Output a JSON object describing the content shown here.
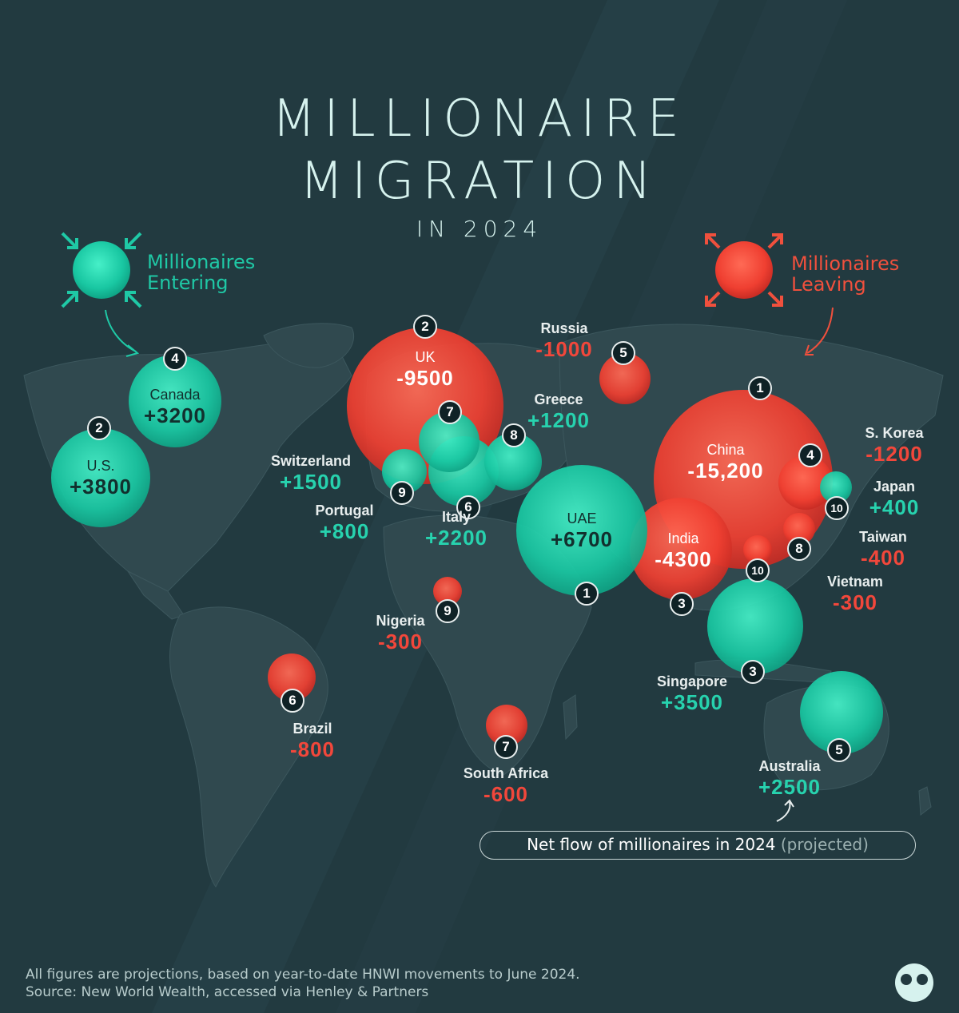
{
  "title": {
    "line1": "MILLIONAIRE",
    "line2": "MIGRATION",
    "line3": "IN 2024"
  },
  "legend": {
    "entering": {
      "label": "Millionaires\nEntering",
      "color": "#1fc9a6"
    },
    "leaving": {
      "label": "Millionaires\nLeaving",
      "color": "#f0503d"
    }
  },
  "netflow": {
    "text": "Net flow of millionaires in 2024",
    "qualifier": "(projected)"
  },
  "footnote": {
    "line1": "All figures are projections, based on year-to-date HNWI movements to June 2024.",
    "line2": "Source: New World Wealth, accessed via Henley & Partners"
  },
  "colors": {
    "positive": "#27d2ae",
    "negative": "#f2473b",
    "background": "#223a40",
    "land": "#2f4a50"
  },
  "map_data": {
    "entering": [
      {
        "rank": "1",
        "name": "UAE",
        "value": "+6700",
        "net": 6700
      },
      {
        "rank": "2",
        "name": "U.S.",
        "value": "+3800",
        "net": 3800
      },
      {
        "rank": "3",
        "name": "Singapore",
        "value": "+3500",
        "net": 3500
      },
      {
        "rank": "4",
        "name": "Canada",
        "value": "+3200",
        "net": 3200
      },
      {
        "rank": "5",
        "name": "Australia",
        "value": "+2500",
        "net": 2500
      },
      {
        "rank": "6",
        "name": "Italy",
        "value": "+2200",
        "net": 2200
      },
      {
        "rank": "7",
        "name": "Switzerland",
        "value": "+1500",
        "net": 1500
      },
      {
        "rank": "8",
        "name": "Greece",
        "value": "+1200",
        "net": 1200
      },
      {
        "rank": "9",
        "name": "Portugal",
        "value": "+800",
        "net": 800
      },
      {
        "rank": "10",
        "name": "Japan",
        "value": "+400",
        "net": 400
      }
    ],
    "leaving": [
      {
        "rank": "1",
        "name": "China",
        "value": "-15,200",
        "net": -15200
      },
      {
        "rank": "2",
        "name": "UK",
        "value": "-9500",
        "net": -9500
      },
      {
        "rank": "3",
        "name": "India",
        "value": "-4300",
        "net": -4300
      },
      {
        "rank": "4",
        "name": "S. Korea",
        "value": "-1200",
        "net": -1200
      },
      {
        "rank": "5",
        "name": "Russia",
        "value": "-1000",
        "net": -1000
      },
      {
        "rank": "6",
        "name": "Brazil",
        "value": "-800",
        "net": -800
      },
      {
        "rank": "7",
        "name": "South Africa",
        "value": "-600",
        "net": -600
      },
      {
        "rank": "8",
        "name": "Taiwan",
        "value": "-400",
        "net": -400
      },
      {
        "rank": "9",
        "name": "Nigeria",
        "value": "-300",
        "net": -300
      },
      {
        "rank": "10",
        "name": "Vietnam",
        "value": "-300",
        "net": -300
      }
    ]
  }
}
